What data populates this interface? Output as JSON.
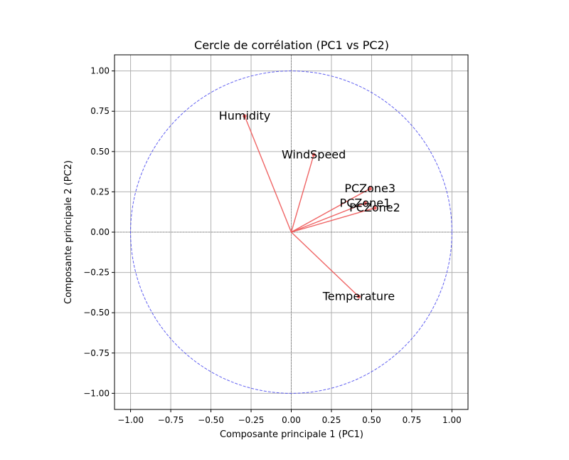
{
  "chart_data": {
    "type": "scatter",
    "title": "Cercle de corrélation (PC1 vs PC2)",
    "xlabel": "Composante principale 1 (PC1)",
    "ylabel": "Composante principale 2 (PC2)",
    "xlim": [
      -1.1,
      1.1
    ],
    "ylim": [
      -1.1,
      1.1
    ],
    "xticks": [
      -1.0,
      -0.75,
      -0.5,
      -0.25,
      0.0,
      0.25,
      0.5,
      0.75,
      1.0
    ],
    "yticks": [
      -1.0,
      -0.75,
      -0.5,
      -0.25,
      0.0,
      0.25,
      0.5,
      0.75,
      1.0
    ],
    "xtick_labels": [
      "−1.00",
      "−0.75",
      "−0.50",
      "−0.25",
      "0.00",
      "0.25",
      "0.50",
      "0.75",
      "1.00"
    ],
    "ytick_labels": [
      "−1.00",
      "−0.75",
      "−0.50",
      "−0.25",
      "0.00",
      "0.25",
      "0.50",
      "0.75",
      "1.00"
    ],
    "grid": true,
    "unit_circle": {
      "radius": 1.0,
      "color": "#4444ee",
      "style": "dashed"
    },
    "vector_color": "#ee5555",
    "vectors": [
      {
        "name": "Humidity",
        "x": -0.29,
        "y": 0.72
      },
      {
        "name": "WindSpeed",
        "x": 0.14,
        "y": 0.48
      },
      {
        "name": "PCZone3",
        "x": 0.49,
        "y": 0.27
      },
      {
        "name": "PCZone1",
        "x": 0.46,
        "y": 0.18
      },
      {
        "name": "PCZone2",
        "x": 0.52,
        "y": 0.15
      },
      {
        "name": "Temperature",
        "x": 0.42,
        "y": -0.4
      }
    ]
  }
}
